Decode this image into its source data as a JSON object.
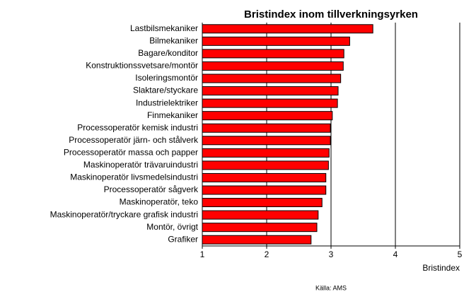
{
  "chart_data": {
    "type": "bar",
    "orientation": "horizontal",
    "title": "Bristindex inom tillverkningsyrken",
    "x_label": "Bristindex",
    "source": "Källa: AMS",
    "categories": [
      "Lastbilsmekaniker",
      "Bilmekaniker",
      "Bagare/konditor",
      "Konstruktionssvetsare/montör",
      "Isoleringsmontör",
      "Slaktare/styckare",
      "Industrielektriker",
      "Finmekaniker",
      "Processoperatör kemisk industri",
      "Processoperatör järn- och stålverk",
      "Processoperatör massa och papper",
      "Maskinoperatör trävaruindustri",
      "Maskinoperatör livsmedelsindustri",
      "Processoperatör sågverk",
      "Maskinoperatör, teko",
      "Maskinoperatör/tryckare grafisk industri",
      "Montör, övrigt",
      "Grafiker"
    ],
    "values": [
      3.65,
      3.29,
      3.2,
      3.19,
      3.15,
      3.11,
      3.1,
      3.02,
      2.99,
      2.99,
      2.97,
      2.96,
      2.92,
      2.92,
      2.86,
      2.8,
      2.78,
      2.69
    ],
    "color": "#ff0000",
    "xlim": [
      1,
      5
    ],
    "xticks": [
      1,
      2,
      3,
      4,
      5
    ],
    "grid": true
  }
}
